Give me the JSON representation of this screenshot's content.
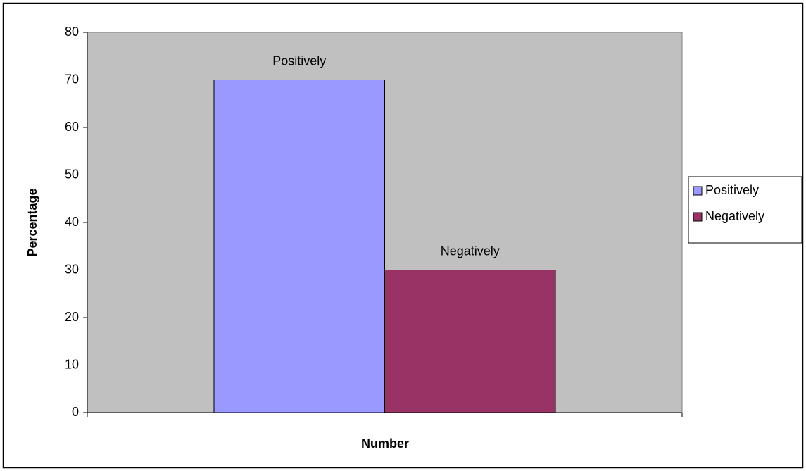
{
  "chart_data": {
    "type": "bar",
    "categories": [
      null
    ],
    "series": [
      {
        "name": "Positively",
        "color": "#9999ff",
        "values": [
          70
        ]
      },
      {
        "name": "Negatively",
        "color": "#993366",
        "values": [
          30
        ]
      }
    ],
    "x_label": "Number",
    "y_label": "Percentage",
    "ylim": [
      0,
      80
    ],
    "yticks": [
      0,
      10,
      20,
      30,
      40,
      50,
      60,
      70,
      80
    ],
    "grid": false,
    "legend": "right"
  }
}
